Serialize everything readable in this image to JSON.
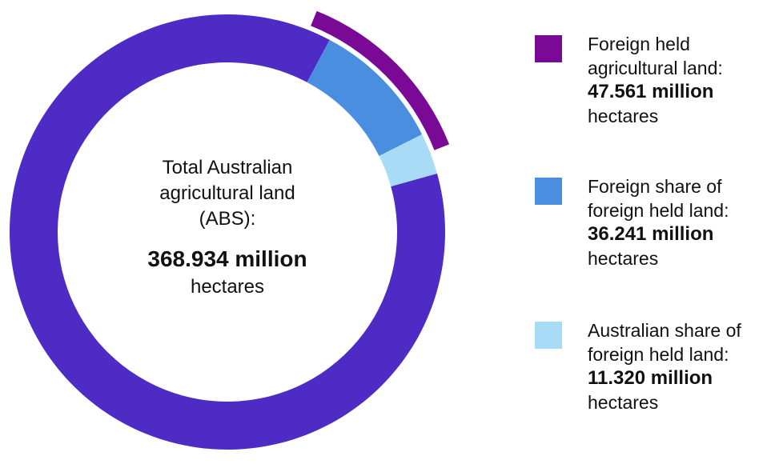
{
  "chart_data": {
    "type": "pie",
    "center": {
      "line1": "Total Australian",
      "line2": "agricultural land",
      "line3": "(ABS):",
      "value": "368.934 million",
      "unit": "hectares"
    },
    "total": 368.934,
    "series": [
      {
        "key": "foreign",
        "line1": "Foreign held",
        "line2": "agricultural land:",
        "value_label": "47.561 million",
        "unit": "hectares",
        "value": 47.561,
        "color": "#7a0a96",
        "ring": "outer"
      },
      {
        "key": "foreign_share",
        "line1": "Foreign share of",
        "line2": "foreign held land:",
        "value_label": "36.241 million",
        "unit": "hectares",
        "value": 36.241,
        "color": "#4a8fdf",
        "ring": "inner"
      },
      {
        "key": "aus_share",
        "line1": "Australian share of",
        "line2": "foreign held land:",
        "value_label": "11.320 million",
        "unit": "hectares",
        "value": 11.32,
        "color": "#a8dcf6",
        "ring": "inner"
      }
    ],
    "remainder_color": "#4f2bc6"
  }
}
